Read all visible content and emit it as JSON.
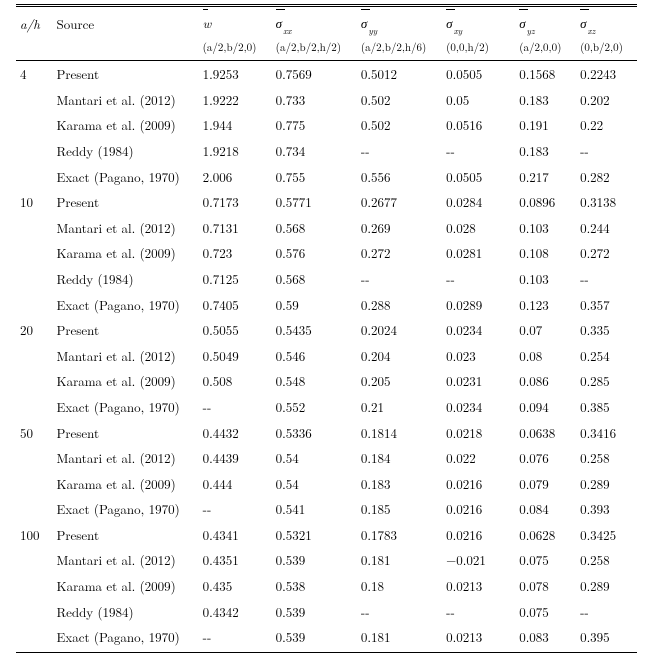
{
  "header": {
    "ah": "a/h",
    "source": "Source",
    "cols": [
      {
        "letter": "w",
        "sub": "",
        "loc": "(a/2,b/2,0)"
      },
      {
        "letter": "σ",
        "sub": "xx",
        "loc": "(a/2,b/2,h/2)"
      },
      {
        "letter": "σ",
        "sub": "yy",
        "loc": "(a/2,b/2,h/6)"
      },
      {
        "letter": "σ",
        "sub": "xy",
        "loc": "(0,0,h/2)"
      },
      {
        "letter": "σ",
        "sub": "yz",
        "loc": "(a/2,0,0)"
      },
      {
        "letter": "σ",
        "sub": "xz",
        "loc": "(0,b/2,0)"
      }
    ]
  },
  "groups": [
    {
      "ah": "4",
      "rows": [
        {
          "src": "Present",
          "v": [
            "1.9253",
            "0.7569",
            "0.5012",
            "0.0505",
            "0.1568",
            "0.2243"
          ]
        },
        {
          "src": "Mantari et al. (2012)",
          "v": [
            "1.9222",
            "0.733",
            "0.502",
            "0.05",
            "0.183",
            "0.202"
          ]
        },
        {
          "src": "Karama et al. (2009)",
          "v": [
            "1.944",
            "0.775",
            "0.502",
            "0.0516",
            "0.191",
            "0.22"
          ]
        },
        {
          "src": "Reddy (1984)",
          "v": [
            "1.9218",
            "0.734",
            "--",
            "--",
            "0.183",
            "--"
          ]
        },
        {
          "src": "Exact (Pagano, 1970)",
          "v": [
            "2.006",
            "0.755",
            "0.556",
            "0.0505",
            "0.217",
            "0.282"
          ]
        }
      ]
    },
    {
      "ah": "10",
      "rows": [
        {
          "src": "Present",
          "v": [
            "0.7173",
            "0.5771",
            "0.2677",
            "0.0284",
            "0.0896",
            "0.3138"
          ]
        },
        {
          "src": "Mantari et al. (2012)",
          "v": [
            "0.7131",
            "0.568",
            "0.269",
            "0.028",
            "0.103",
            "0.244"
          ]
        },
        {
          "src": "Karama et al. (2009)",
          "v": [
            "0.723",
            "0.576",
            "0.272",
            "0.0281",
            "0.108",
            "0.272"
          ]
        },
        {
          "src": "Reddy (1984)",
          "v": [
            "0.7125",
            "0.568",
            "--",
            "--",
            "0.103",
            "--"
          ]
        },
        {
          "src": "Exact (Pagano, 1970)",
          "v": [
            "0.7405",
            "0.59",
            "0.288",
            "0.0289",
            "0.123",
            "0.357"
          ]
        }
      ]
    },
    {
      "ah": "20",
      "rows": [
        {
          "src": "Present",
          "v": [
            "0.5055",
            "0.5435",
            "0.2024",
            "0.0234",
            "0.07",
            "0.335"
          ]
        },
        {
          "src": "Mantari et al. (2012)",
          "v": [
            "0.5049",
            "0.546",
            "0.204",
            "0.023",
            "0.08",
            "0.254"
          ]
        },
        {
          "src": "Karama et al. (2009)",
          "v": [
            "0.508",
            "0.548",
            "0.205",
            "0.0231",
            "0.086",
            "0.285"
          ]
        },
        {
          "src": "Exact (Pagano, 1970)",
          "v": [
            "--",
            "0.552",
            "0.21",
            "0.0234",
            "0.094",
            "0.385"
          ]
        }
      ]
    },
    {
      "ah": "50",
      "rows": [
        {
          "src": "Present",
          "v": [
            "0.4432",
            "0.5336",
            "0.1814",
            "0.0218",
            "0.0638",
            "0.3416"
          ]
        },
        {
          "src": "Mantari et al. (2012)",
          "v": [
            "0.4439",
            "0.54",
            "0.184",
            "0.022",
            "0.076",
            "0.258"
          ]
        },
        {
          "src": "Karama et al. (2009)",
          "v": [
            "0.444",
            "0.54",
            "0.183",
            "0.0216",
            "0.079",
            "0.289"
          ]
        },
        {
          "src": "Exact (Pagano, 1970)",
          "v": [
            "--",
            "0.541",
            "0.185",
            "0.0216",
            "0.084",
            "0.393"
          ]
        }
      ]
    },
    {
      "ah": "100",
      "rows": [
        {
          "src": "Present",
          "v": [
            "0.4341",
            "0.5321",
            "0.1783",
            "0.0216",
            "0.0628",
            "0.3425"
          ]
        },
        {
          "src": "Mantari et al. (2012)",
          "v": [
            "0.4351",
            "0.539",
            "0.181",
            "−0.021",
            "0.075",
            "0.258"
          ]
        },
        {
          "src": "Karama et al. (2009)",
          "v": [
            "0.435",
            "0.538",
            "0.18",
            "0.0213",
            "0.078",
            "0.289"
          ]
        },
        {
          "src": "Reddy (1984)",
          "v": [
            "0.4342",
            "0.539",
            "--",
            "--",
            "0.075",
            "--"
          ]
        },
        {
          "src": "Exact (Pagano, 1970)",
          "v": [
            "--",
            "0.539",
            "0.181",
            "0.0213",
            "0.083",
            "0.395"
          ]
        }
      ]
    }
  ]
}
